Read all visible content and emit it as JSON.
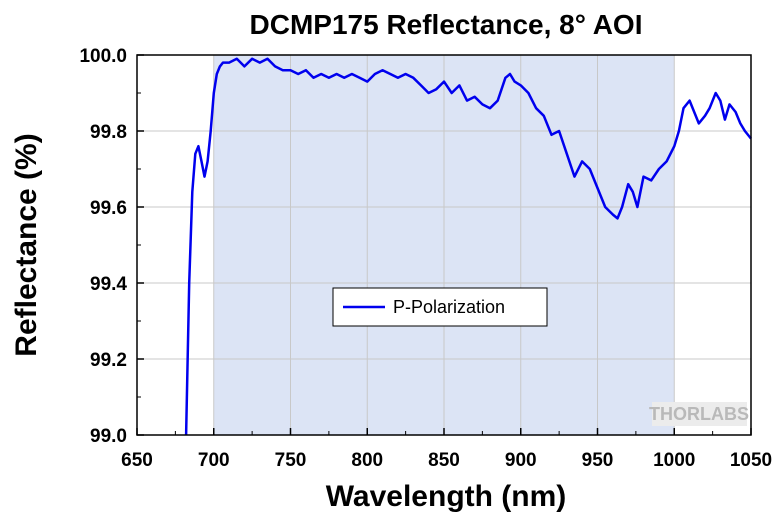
{
  "chart_data": {
    "type": "line",
    "title": "DCMP175 Reflectance, 8° AOI",
    "xlabel": "Wavelength (nm)",
    "ylabel": "Reflectance (%)",
    "xlim": [
      650,
      1050
    ],
    "ylim": [
      99.0,
      100.0
    ],
    "x_ticks": [
      650,
      700,
      750,
      800,
      850,
      900,
      950,
      1000,
      1050
    ],
    "x_tick_labels": [
      "650",
      "700",
      "750",
      "800",
      "850",
      "900",
      "950",
      "1000",
      "1050"
    ],
    "y_ticks": [
      99.0,
      99.2,
      99.4,
      99.6,
      99.8,
      100.0
    ],
    "y_tick_labels": [
      "99.0",
      "99.2",
      "99.4",
      "99.6",
      "99.8",
      "100.0"
    ],
    "grid": true,
    "shaded_band": {
      "x_start": 700,
      "x_end": 1000,
      "color": "#dce4f5"
    },
    "legend_position": "center",
    "watermark": "THORLABS",
    "colors": {
      "series": "#0000ee",
      "band": "#dce4f5",
      "grid": "#c8c8c8",
      "axis": "#000000"
    },
    "series": [
      {
        "name": "P-Polarization",
        "x": [
          682,
          684,
          686,
          688,
          690,
          692,
          694,
          696,
          698,
          700,
          702,
          704,
          706,
          710,
          715,
          720,
          725,
          730,
          735,
          740,
          745,
          750,
          755,
          760,
          765,
          770,
          775,
          780,
          785,
          790,
          795,
          800,
          805,
          810,
          815,
          820,
          825,
          830,
          835,
          840,
          845,
          850,
          855,
          860,
          865,
          870,
          875,
          880,
          885,
          890,
          893,
          896,
          900,
          905,
          910,
          915,
          920,
          925,
          930,
          935,
          940,
          945,
          950,
          955,
          960,
          963,
          966,
          970,
          973,
          976,
          980,
          985,
          990,
          995,
          1000,
          1003,
          1006,
          1010,
          1013,
          1016,
          1020,
          1023,
          1027,
          1030,
          1033,
          1036,
          1040,
          1043,
          1046,
          1050
        ],
        "y": [
          99.0,
          99.4,
          99.64,
          99.74,
          99.76,
          99.72,
          99.68,
          99.72,
          99.8,
          99.9,
          99.95,
          99.97,
          99.98,
          99.98,
          99.99,
          99.97,
          99.99,
          99.98,
          99.99,
          99.97,
          99.96,
          99.96,
          99.95,
          99.96,
          99.94,
          99.95,
          99.94,
          99.95,
          99.94,
          99.95,
          99.94,
          99.93,
          99.95,
          99.96,
          99.95,
          99.94,
          99.95,
          99.94,
          99.92,
          99.9,
          99.91,
          99.93,
          99.9,
          99.92,
          99.88,
          99.89,
          99.87,
          99.86,
          99.88,
          99.94,
          99.95,
          99.93,
          99.92,
          99.9,
          99.86,
          99.84,
          99.79,
          99.8,
          99.74,
          99.68,
          99.72,
          99.7,
          99.65,
          99.6,
          99.58,
          99.57,
          99.6,
          99.66,
          99.64,
          99.6,
          99.68,
          99.67,
          99.7,
          99.72,
          99.76,
          99.8,
          99.86,
          99.88,
          99.85,
          99.82,
          99.84,
          99.86,
          99.9,
          99.88,
          99.83,
          99.87,
          99.85,
          99.82,
          99.8,
          99.78
        ]
      }
    ]
  }
}
